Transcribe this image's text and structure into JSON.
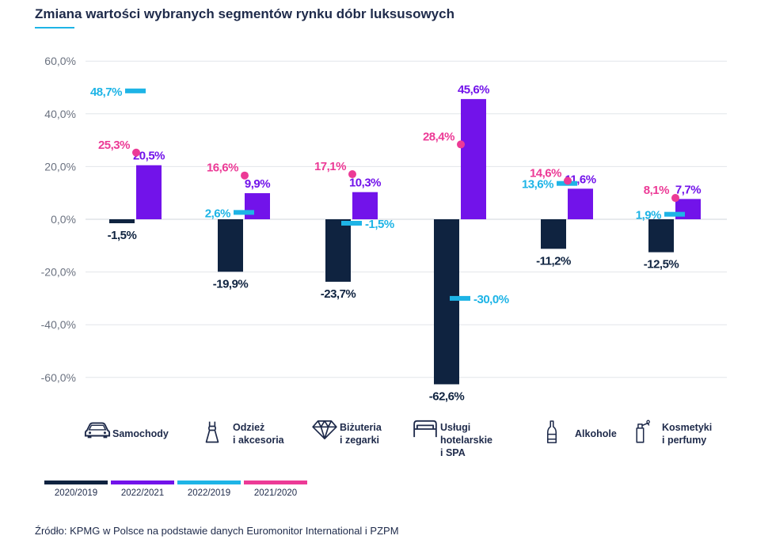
{
  "title": "Zmiana wartości wybranych segmentów rynku dóbr luksusowych",
  "source": "Źródło: KPMG w Polsce na podstawie danych Euromonitor International i PZPM",
  "colors": {
    "2020/2019": "#0f2340",
    "2022/2021": "#7213ea",
    "2022/2019": "#1eb4e6",
    "2021/2020": "#ec3a96",
    "grid": "#e2e5ea",
    "axis_text": "#6b7280"
  },
  "legend": [
    "2020/2019",
    "2022/2021",
    "2022/2019",
    "2021/2020"
  ],
  "categories": [
    {
      "label": "Samochody",
      "icon": "car-icon"
    },
    {
      "label": "Odzież\ni akcesoria",
      "icon": "dress-icon"
    },
    {
      "label": "Biżuteria\ni zegarki",
      "icon": "diamond-icon"
    },
    {
      "label": "Usługi\nhotelarskie\ni SPA",
      "icon": "bed-icon"
    },
    {
      "label": "Alkohole",
      "icon": "bottle-icon"
    },
    {
      "label": "Kosmetyki\ni perfumy",
      "icon": "perfume-icon"
    }
  ],
  "chart_data": {
    "type": "bar",
    "title": "Zmiana wartości wybranych segmentów rynku dóbr luksusowych",
    "categories": [
      "Samochody",
      "Odzież i akcesoria",
      "Biżuteria i zegarki",
      "Usługi hotelarskie i SPA",
      "Alkohole",
      "Kosmetyki i perfumy"
    ],
    "ylim": [
      -60,
      60
    ],
    "yticks": [
      60,
      40,
      20,
      0,
      -20,
      -40,
      -60
    ],
    "ytick_labels": [
      "60,0%",
      "40,0%",
      "20,0%",
      "0,0%",
      "-20,0%",
      "-40,0%",
      "-60,0%"
    ],
    "grid": true,
    "legend_position": "bottom-left",
    "series": [
      {
        "name": "2020/2019",
        "mark": "bar",
        "values": [
          -1.5,
          -19.9,
          -23.7,
          -62.6,
          -11.2,
          -12.5
        ],
        "labels": [
          "-1,5%",
          "-19,9%",
          "-23,7%",
          "-62,6%",
          "-11,2%",
          "-12,5%"
        ]
      },
      {
        "name": "2022/2021",
        "mark": "bar",
        "values": [
          20.5,
          9.9,
          10.3,
          45.6,
          11.6,
          7.7
        ],
        "labels": [
          "20,5%",
          "9,9%",
          "10,3%",
          "45,6%",
          "11,6%",
          "7,7%"
        ]
      },
      {
        "name": "2022/2019",
        "mark": "dash",
        "values": [
          48.7,
          2.6,
          -1.5,
          -30.0,
          13.6,
          1.9
        ],
        "labels": [
          "48,7%",
          "2,6%",
          "-1,5%",
          "-30,0%",
          "13,6%",
          "1,9%"
        ]
      },
      {
        "name": "2021/2020",
        "mark": "dot",
        "values": [
          25.3,
          16.6,
          17.1,
          28.4,
          14.6,
          8.1
        ],
        "labels": [
          "25,3%",
          "16,6%",
          "17,1%",
          "28,4%",
          "14,6%",
          "8,1%"
        ]
      }
    ]
  }
}
